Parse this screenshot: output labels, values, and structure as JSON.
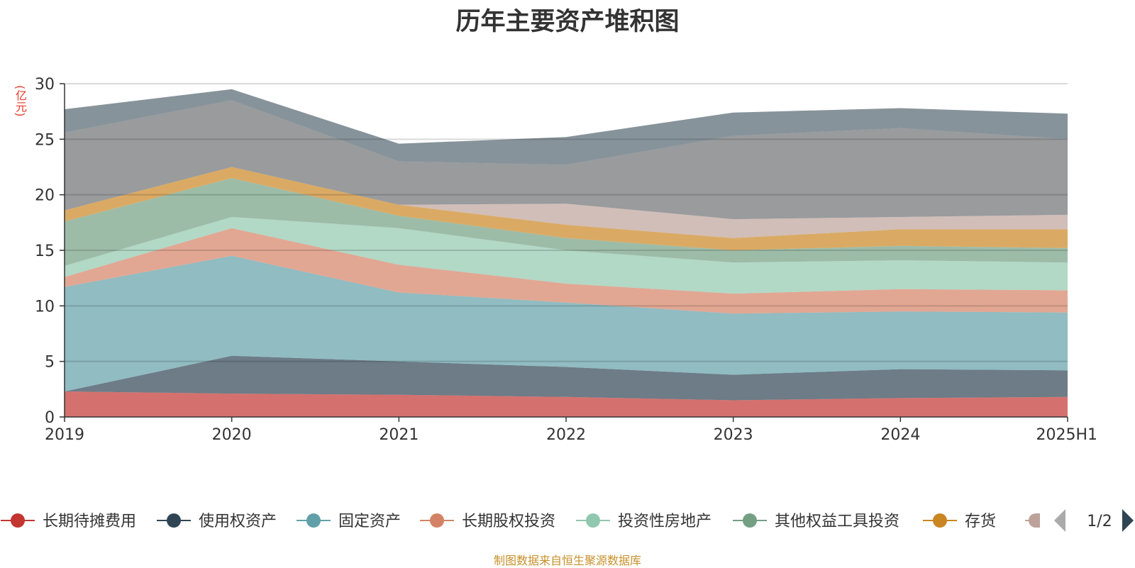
{
  "chart_data": {
    "type": "area",
    "stacked": true,
    "title": "历年主要资产堆积图",
    "ylabel": "(亿元)",
    "ylim": [
      0,
      30
    ],
    "yticks": [
      0,
      5,
      10,
      15,
      20,
      25,
      30
    ],
    "categories": [
      "2019",
      "2020",
      "2021",
      "2022",
      "2023",
      "2024",
      "2025H1"
    ],
    "grid": true,
    "legend_position": "bottom",
    "series": [
      {
        "name": "长期待摊费用",
        "color": "#c23531",
        "values": [
          2.3,
          2.1,
          2.0,
          1.8,
          1.5,
          1.7,
          1.8
        ]
      },
      {
        "name": "使用权资产",
        "color": "#2f4554",
        "values": [
          0.0,
          3.4,
          3.0,
          2.7,
          2.3,
          2.6,
          2.4
        ]
      },
      {
        "name": "固定资产",
        "color": "#61a0a8",
        "values": [
          9.4,
          9.0,
          6.2,
          5.8,
          5.5,
          5.2,
          5.2
        ]
      },
      {
        "name": "长期股权投资",
        "color": "#d48265",
        "values": [
          0.9,
          2.5,
          2.5,
          1.7,
          1.8,
          2.0,
          2.0
        ]
      },
      {
        "name": "投资性房地产",
        "color": "#91c7ae",
        "values": [
          1.0,
          1.0,
          3.3,
          3.0,
          2.8,
          2.6,
          2.5
        ]
      },
      {
        "name": "其他权益工具投资",
        "color": "#749f83",
        "values": [
          4.0,
          3.5,
          1.1,
          1.1,
          1.1,
          1.3,
          1.3
        ]
      },
      {
        "name": "存货",
        "color": "#ca8622",
        "values": [
          1.0,
          1.0,
          1.0,
          1.2,
          1.1,
          1.5,
          1.7
        ]
      },
      {
        "name": "",
        "color": "#bda29a",
        "values": [
          0.0,
          0.0,
          0.0,
          1.9,
          1.7,
          1.1,
          1.3
        ]
      },
      {
        "name": "",
        "color": "#6e7074",
        "values": [
          7.0,
          6.0,
          3.9,
          3.5,
          7.5,
          8.0,
          6.8
        ]
      },
      {
        "name": "",
        "color": "#546570",
        "values": [
          2.1,
          1.0,
          1.6,
          2.5,
          2.1,
          1.8,
          2.3
        ]
      }
    ]
  },
  "labels": {
    "title": "历年主要资产堆积图",
    "y_unit": "(亿元)",
    "source": "制图数据来自恒生聚源数据库"
  },
  "legend": {
    "page_indicator": "1/2",
    "visible_items": [
      "长期待摊费用",
      "使用权资产",
      "固定资产",
      "长期股权投资",
      "投资性房地产",
      "其他权益工具投资",
      "存货"
    ]
  }
}
